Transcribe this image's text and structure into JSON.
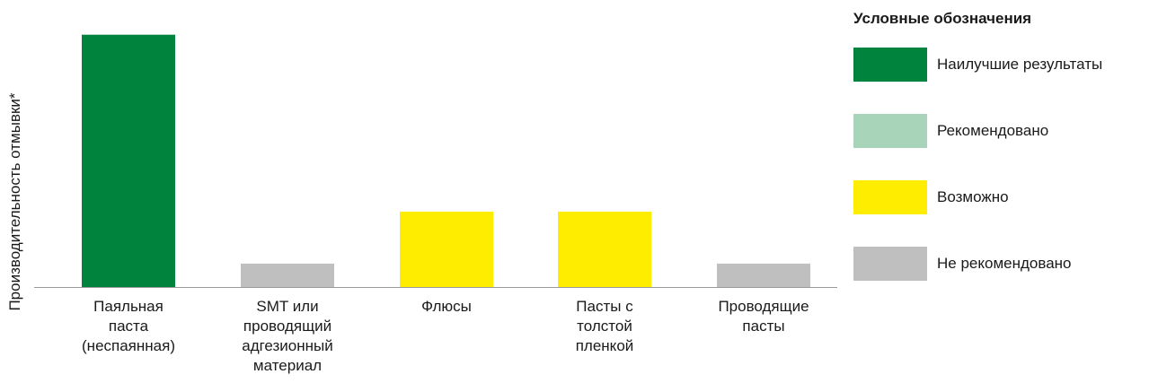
{
  "chart_data": {
    "type": "bar",
    "ylabel": "Производительность отмывки*",
    "xlabel": "",
    "ylim": [
      0,
      10
    ],
    "grid": false,
    "legend_position": "right",
    "categories": [
      [
        "Паяльная",
        "паста",
        "(неспаянная)"
      ],
      [
        "SMT или",
        "проводящий",
        "адгезионный",
        "материал"
      ],
      [
        "Флюсы"
      ],
      [
        "Пасты с",
        "толстой",
        "пленкой"
      ],
      [
        "Проводящие",
        "пасты"
      ]
    ],
    "values": [
      9.7,
      0.9,
      2.9,
      2.9,
      0.9
    ],
    "bar_classes": [
      "best",
      "not_recommended",
      "possible",
      "possible",
      "not_recommended"
    ]
  },
  "legend": {
    "title": "Условные обозначения",
    "items": [
      {
        "key": "best",
        "label": "Наилучшие результаты",
        "color": "#00843d"
      },
      {
        "key": "recommended",
        "label": "Рекомендовано",
        "color": "#a8d5ba"
      },
      {
        "key": "possible",
        "label": "Возможно",
        "color": "#ffed00"
      },
      {
        "key": "not_recommended",
        "label": "Не рекомендовано",
        "color": "#bfbfbf"
      }
    ]
  },
  "colors": {
    "axis": "#9a9a9a"
  }
}
